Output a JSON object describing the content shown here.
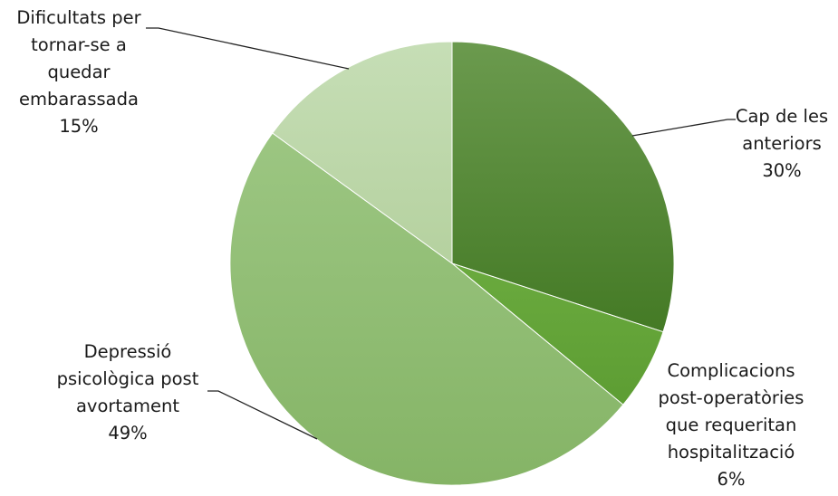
{
  "chart_data": {
    "type": "pie",
    "title": "",
    "start_angle_deg": 0,
    "direction": "clockwise",
    "slices": [
      {
        "label_lines": [
          "Cap de les",
          "anteriors"
        ],
        "value": 30,
        "percent_label": "30%",
        "color": "#4f8a2e"
      },
      {
        "label_lines": [
          "Complicacions",
          "post-operatòries",
          "que requeritan",
          "hospitalització"
        ],
        "value": 6,
        "percent_label": "6%",
        "color": "#66a73a"
      },
      {
        "label_lines": [
          "Depressió",
          "psicològica post",
          "avortament"
        ],
        "value": 49,
        "percent_label": "49%",
        "color": "#8fbd73"
      },
      {
        "label_lines": [
          "Dificultats per",
          "tornar-se a",
          "quedar",
          "embarassada"
        ],
        "value": 15,
        "percent_label": "15%",
        "color": "#c2dbb0"
      }
    ]
  }
}
